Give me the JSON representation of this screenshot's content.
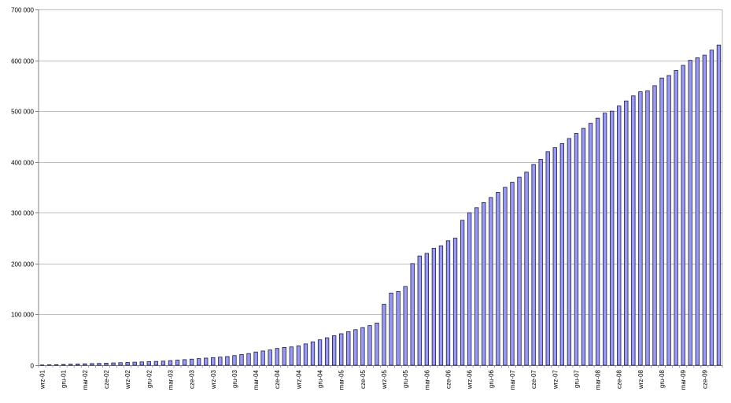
{
  "colors": {
    "bar_fill": "#9b9bee",
    "bar_stroke": "#1a1a4e",
    "grid": "#bdbdbd",
    "axis": "#808080"
  },
  "chart_data": {
    "type": "bar",
    "title": "",
    "xlabel": "",
    "ylabel": "",
    "ylim": [
      0,
      700000
    ],
    "y_ticks": [
      0,
      100000,
      200000,
      300000,
      400000,
      500000,
      600000,
      700000
    ],
    "y_tick_labels": [
      "0",
      "100 000",
      "200 000",
      "300 000",
      "400 000",
      "500 000",
      "600 000",
      "700 000"
    ],
    "grid": true,
    "legend": "none",
    "x_tick_every": 3,
    "categories": [
      "wrz-01",
      "paź-01",
      "lis-01",
      "gru-01",
      "sty-02",
      "lut-02",
      "mar-02",
      "kwi-02",
      "maj-02",
      "cze-02",
      "lip-02",
      "sie-02",
      "wrz-02",
      "paź-02",
      "lis-02",
      "gru-02",
      "sty-03",
      "lut-03",
      "mar-03",
      "kwi-03",
      "maj-03",
      "cze-03",
      "lip-03",
      "sie-03",
      "wrz-03",
      "paź-03",
      "lis-03",
      "gru-03",
      "sty-04",
      "lut-04",
      "mar-04",
      "kwi-04",
      "maj-04",
      "cze-04",
      "lip-04",
      "sie-04",
      "wrz-04",
      "paź-04",
      "lis-04",
      "gru-04",
      "sty-05",
      "lut-05",
      "mar-05",
      "kwi-05",
      "maj-05",
      "cze-05",
      "lip-05",
      "sie-05",
      "wrz-05",
      "paź-05",
      "lis-05",
      "gru-05",
      "sty-06",
      "lut-06",
      "mar-06",
      "kwi-06",
      "maj-06",
      "cze-06",
      "lip-06",
      "sie-06",
      "wrz-06",
      "paź-06",
      "lis-06",
      "gru-06",
      "sty-07",
      "lut-07",
      "mar-07",
      "kwi-07",
      "maj-07",
      "cze-07",
      "lip-07",
      "sie-07",
      "wrz-07",
      "paź-07",
      "lis-07",
      "gru-07",
      "sty-08",
      "lut-08",
      "mar-08",
      "kwi-08",
      "maj-08",
      "cze-08",
      "lip-08",
      "sie-08",
      "wrz-08",
      "paź-08",
      "lis-08",
      "gru-08",
      "sty-09",
      "lut-09",
      "mar-09",
      "kwi-09",
      "maj-09",
      "cze-09",
      "lip-09",
      "sie-09"
    ],
    "x_tick_labels": [
      "wrz-01",
      "gru-01",
      "mar-02",
      "cze-02",
      "wrz-02",
      "gru-02",
      "mar-03",
      "cze-03",
      "wrz-03",
      "gru-03",
      "mar-04",
      "cze-04",
      "wrz-04",
      "gru-04",
      "mar-05",
      "cze-05",
      "wrz-05",
      "gru-05",
      "mar-06",
      "cze-06",
      "wrz-06",
      "gru-06",
      "mar-07",
      "cze-07",
      "wrz-07",
      "gru-07",
      "mar-08",
      "cze-08",
      "wrz-08",
      "gru-08",
      "mar-09",
      "cze-09"
    ],
    "values": [
      500,
      800,
      1000,
      1500,
      2000,
      2400,
      2800,
      3200,
      3600,
      4000,
      4500,
      5000,
      5500,
      6000,
      6500,
      7000,
      7500,
      8000,
      9000,
      10000,
      11000,
      12000,
      13000,
      14000,
      15000,
      16000,
      17000,
      19000,
      21000,
      23000,
      26000,
      28000,
      30000,
      33000,
      35000,
      36000,
      38000,
      42000,
      46000,
      50000,
      54000,
      58000,
      62000,
      66000,
      70000,
      74000,
      78000,
      83000,
      120000,
      142000,
      145000,
      155000,
      200000,
      215000,
      220000,
      230000,
      235000,
      245000,
      250000,
      285000,
      300000,
      310000,
      320000,
      330000,
      340000,
      350000,
      360000,
      370000,
      380000,
      395000,
      405000,
      420000,
      428000,
      436000,
      446000,
      456000,
      466000,
      476000,
      486000,
      496000,
      500000,
      510000,
      520000,
      530000,
      538000,
      540000,
      550000,
      565000,
      570000,
      580000,
      590000,
      600000,
      605000,
      610000,
      620000,
      630000
    ]
  }
}
